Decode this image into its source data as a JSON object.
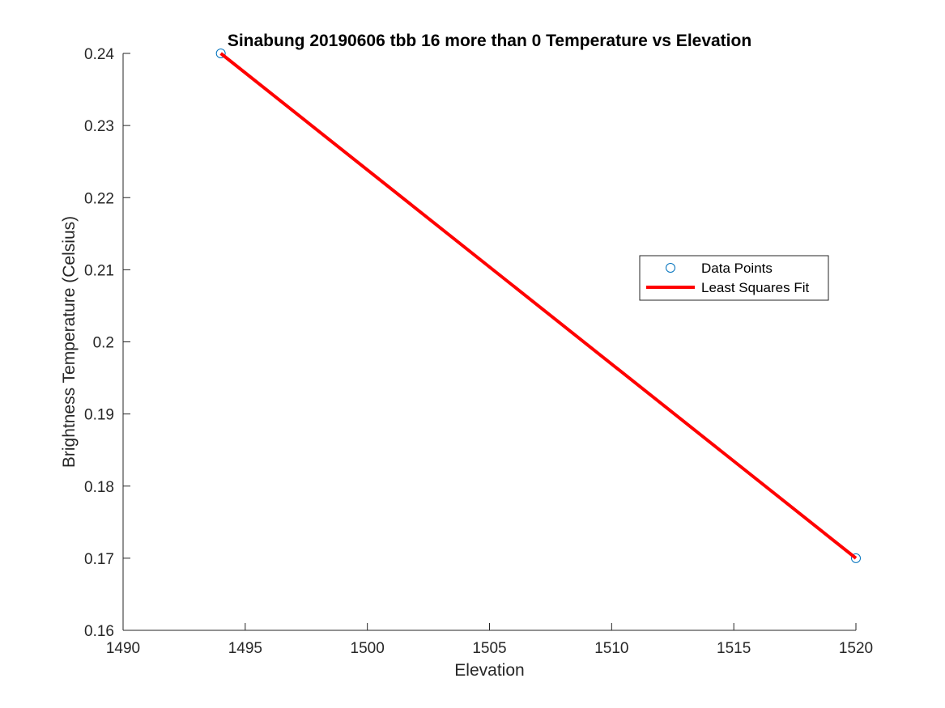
{
  "chart_data": {
    "type": "scatter",
    "title": "Sinabung 20190606 tbb 16 more than 0 Temperature vs Elevation",
    "xlabel": "Elevation",
    "ylabel": "Brightness Temperature (Celsius)",
    "xlim": [
      1490,
      1520
    ],
    "ylim": [
      0.16,
      0.24
    ],
    "xticks": [
      1490,
      1495,
      1500,
      1505,
      1510,
      1515,
      1520
    ],
    "yticks": [
      0.16,
      0.17,
      0.18,
      0.19,
      0.2,
      0.21,
      0.22,
      0.23,
      0.24
    ],
    "xtick_labels": [
      "1490",
      "1495",
      "1500",
      "1505",
      "1510",
      "1515",
      "1520"
    ],
    "ytick_labels": [
      "0.16",
      "0.17",
      "0.18",
      "0.19",
      "0.2",
      "0.21",
      "0.22",
      "0.23",
      "0.24"
    ],
    "grid": false,
    "legend_position": "right",
    "series": [
      {
        "name": "Data Points",
        "kind": "markers",
        "marker": "circle",
        "color": "#0072BD",
        "x": [
          1494,
          1520
        ],
        "y": [
          0.24,
          0.17
        ]
      },
      {
        "name": "Least Squares Fit",
        "kind": "line",
        "color": "#FF0000",
        "x": [
          1494,
          1520
        ],
        "y": [
          0.24,
          0.17
        ]
      }
    ]
  }
}
